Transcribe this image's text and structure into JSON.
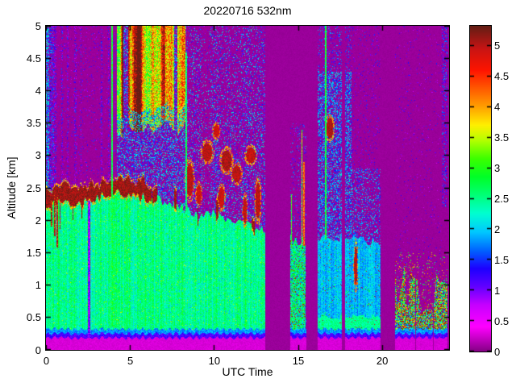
{
  "chart_data": {
    "type": "heatmap",
    "title": "20220716 532nm",
    "xlabel": "UTC Time",
    "ylabel": "Altitude [km]",
    "x_range": [
      0,
      24
    ],
    "y_range": [
      0,
      5
    ],
    "x_ticks": [
      0,
      5,
      10,
      15,
      20
    ],
    "x_tick_labels": [
      "0",
      "5",
      "10",
      "15",
      "20"
    ],
    "y_ticks": [
      0,
      0.5,
      1,
      1.5,
      2,
      2.5,
      3,
      3.5,
      4,
      4.5,
      5
    ],
    "y_tick_labels": [
      "0",
      "0.5",
      "1",
      "1.5",
      "2",
      "2.5",
      "3",
      "3.5",
      "4",
      "4.5",
      "5"
    ],
    "grid": false,
    "legend": "colorbar-right",
    "colorbar": {
      "vmin": 0,
      "vmax": 5.32,
      "ticks": [
        0,
        0.5,
        1,
        1.5,
        2,
        2.5,
        3,
        3.5,
        4,
        4.5,
        5
      ],
      "tick_labels": [
        "0",
        "0.5",
        "1",
        "1.5",
        "2",
        "2.5",
        "3",
        "3.5",
        "4",
        "4.5",
        "5"
      ]
    },
    "colormap": [
      [
        0.0,
        "#870087"
      ],
      [
        0.4,
        "#ff00ff"
      ],
      [
        0.75,
        "#c800ff"
      ],
      [
        1.05,
        "#6400ff"
      ],
      [
        1.35,
        "#1e00ff"
      ],
      [
        1.65,
        "#0064ff"
      ],
      [
        1.95,
        "#00c8ff"
      ],
      [
        2.25,
        "#00ffd2"
      ],
      [
        2.55,
        "#00ff78"
      ],
      [
        2.85,
        "#00ff28"
      ],
      [
        3.15,
        "#3cff00"
      ],
      [
        3.45,
        "#b4ff00"
      ],
      [
        3.7,
        "#fff000"
      ],
      [
        4.0,
        "#ffa000"
      ],
      [
        4.3,
        "#ff5a00"
      ],
      [
        4.6,
        "#ff1400"
      ],
      [
        4.95,
        "#c81414"
      ],
      [
        5.32,
        "#641e14"
      ]
    ],
    "background_color": "#9a009a",
    "bottom_bands": [
      {
        "z_top": 0.18,
        "value": 0.22,
        "note": "magenta sub-overlap strip"
      },
      {
        "z_top": 0.245,
        "value": 0.95,
        "note": "blue band"
      },
      {
        "z_top": 0.315,
        "value": 1.55,
        "note": "cyan band"
      }
    ],
    "gaps": [
      [
        13.05,
        14.55
      ],
      [
        15.52,
        16.18
      ],
      [
        17.62,
        17.81
      ],
      [
        19.9,
        20.78
      ],
      [
        21.97,
        22.04
      ],
      [
        23.03,
        23.09
      ],
      [
        23.9,
        24
      ]
    ],
    "rain_stripe": {
      "t0": 2.5,
      "t1": 2.63,
      "z_top": 2.32
    },
    "boundary_layer": {
      "points": [
        [
          0,
          2.28
        ],
        [
          1,
          2.34
        ],
        [
          2,
          2.38
        ],
        [
          3,
          2.41
        ],
        [
          4,
          2.46
        ],
        [
          5,
          2.5
        ],
        [
          5.8,
          2.46
        ],
        [
          6.5,
          2.36
        ],
        [
          7,
          2.3
        ],
        [
          8,
          2.22
        ],
        [
          9,
          2.06
        ],
        [
          10,
          2.12
        ],
        [
          11,
          2.0
        ],
        [
          12,
          1.93
        ],
        [
          13,
          1.86
        ],
        [
          14.55,
          1.72
        ],
        [
          15.45,
          1.66
        ],
        [
          16.2,
          1.7
        ],
        [
          17.6,
          1.73
        ],
        [
          18.6,
          1.7
        ],
        [
          19.9,
          1.62
        ],
        [
          20.8,
          1.0
        ],
        [
          21.4,
          1.1
        ],
        [
          22,
          0.75
        ],
        [
          22.6,
          0.8
        ],
        [
          23.2,
          0.7
        ],
        [
          23.9,
          0.65
        ],
        [
          24,
          0.65
        ]
      ]
    },
    "phases": [
      {
        "t0": 0,
        "t1": 13.05,
        "style": "green"
      },
      {
        "t0": 14.55,
        "t1": 15.45,
        "style": "mixed"
      },
      {
        "t0": 16.2,
        "t1": 19.9,
        "style": "cyan"
      },
      {
        "t0": 20.78,
        "t1": 23.9,
        "style": "low"
      }
    ],
    "cap": {
      "t_solid": 6.3,
      "t_end": 13.05,
      "value": 5.1,
      "fingers": [
        {
          "t": 0.32,
          "w": 0.1,
          "bot": 1.9
        },
        {
          "t": 0.52,
          "w": 0.08,
          "bot": 1.75
        },
        {
          "t": 0.68,
          "w": 0.1,
          "bot": 1.58
        },
        {
          "t": 0.85,
          "w": 0.07,
          "bot": 1.85
        },
        {
          "t": 1.6,
          "w": 0.05,
          "bot": 2.0
        },
        {
          "t": 2.15,
          "w": 0.05,
          "bot": 2.02
        }
      ]
    },
    "cloud": {
      "t0": 4.2,
      "t1": 8.3,
      "base_mean": 3.42,
      "base_amp": 0.3,
      "i_min": 2.6,
      "i_max": 5.3,
      "boosts": [
        [
          4.5,
          5.7,
          0.9
        ],
        [
          6.3,
          7.1,
          0.8
        ]
      ]
    },
    "low_field": {
      "t0": 20.78,
      "t1": 23.9,
      "top_min": 0.45,
      "top_max": 1.2
    },
    "speckle_fields": [
      {
        "t0": 0,
        "t1": 0.2,
        "z0": 0.3,
        "z1": 5,
        "p": 0.55,
        "vmin": 1.3,
        "vmax": 2.6
      },
      {
        "t0": 0.05,
        "t1": 0.5,
        "z0": 2.3,
        "z1": 5,
        "p": 0.42,
        "vmin": 0.8,
        "vmax": 1.9
      },
      {
        "t0": 0.5,
        "t1": 0.62,
        "z0": 2.3,
        "z1": 5,
        "p": 0.33,
        "vmin": 0.7,
        "vmax": 1.7
      },
      {
        "t0": 0.9,
        "t1": 1.02,
        "z0": 2.3,
        "z1": 5,
        "p": 0.33,
        "vmin": 0.7,
        "vmax": 1.7
      },
      {
        "t0": 1.25,
        "t1": 1.36,
        "z0": 2.3,
        "z1": 5,
        "p": 0.3,
        "vmin": 0.7,
        "vmax": 1.7
      },
      {
        "t0": 1.7,
        "t1": 1.83,
        "z0": 2.3,
        "z1": 5,
        "p": 0.3,
        "vmin": 0.7,
        "vmax": 1.7
      },
      {
        "t0": 2.05,
        "t1": 2.13,
        "z0": 2.3,
        "z1": 5,
        "p": 0.26,
        "vmin": 0.7,
        "vmax": 1.7
      },
      {
        "t0": 3.28,
        "t1": 3.37,
        "z0": 2.3,
        "z1": 5,
        "p": 0.3,
        "vmin": 0.7,
        "vmax": 1.7
      },
      {
        "t0": 3.7,
        "t1": 3.8,
        "z0": 2.3,
        "z1": 5,
        "p": 0.32,
        "vmin": 0.7,
        "vmax": 1.7
      },
      {
        "t0": 0,
        "t1": 4.2,
        "z0": 2.3,
        "z1": 5,
        "p": 0.05,
        "vmin": 0.7,
        "vmax": 1.6
      },
      {
        "t0": 4.2,
        "t1": 8.3,
        "z0": 0.3,
        "z1": 5,
        "p": 0.42,
        "vmin": 1.0,
        "vmax": 2.4
      },
      {
        "t0": 8.3,
        "t1": 13.05,
        "z0": 0.3,
        "z1": 5,
        "p": 0.5,
        "vmin": 0.8,
        "vmax": 2.4,
        "fade": 0.55,
        "patchy": true
      },
      {
        "t0": 14.55,
        "t1": 16.18,
        "z0": 0.3,
        "z1": 3.5,
        "p": 0.12,
        "vmin": 0.8,
        "vmax": 2.0
      },
      {
        "t0": 16.18,
        "t1": 18.2,
        "z0": 0.3,
        "z1": 4.3,
        "p": 0.5,
        "vmin": 1.2,
        "vmax": 2.3
      },
      {
        "t0": 16.18,
        "t1": 18.2,
        "z0": 4.3,
        "z1": 5,
        "p": 0.15,
        "vmin": 1.0,
        "vmax": 2.0
      },
      {
        "t0": 18.2,
        "t1": 19.9,
        "z0": 0.3,
        "z1": 2.8,
        "p": 0.28,
        "vmin": 1.1,
        "vmax": 2.2
      },
      {
        "t0": 18.2,
        "t1": 19.9,
        "z0": 2.8,
        "z1": 5,
        "p": 0.06,
        "vmin": 0.8,
        "vmax": 1.6
      },
      {
        "t0": 20.78,
        "t1": 23.9,
        "z0": 0,
        "z1": 1.5,
        "p": 0.09,
        "vmin": 2.2,
        "vmax": 5.1
      },
      {
        "t0": 19.9,
        "t1": 23.55,
        "z0": 0.3,
        "z1": 5,
        "p": 0.03,
        "vmin": 0.7,
        "vmax": 1.5
      },
      {
        "t0": 23.55,
        "t1": 23.9,
        "z0": 2.2,
        "z1": 5,
        "p": 0.3,
        "vmin": 0.9,
        "vmax": 1.9
      }
    ],
    "blobs": [
      {
        "t": 8.55,
        "z": 2.62,
        "w": 0.22,
        "h": 0.25,
        "v": 5.0
      },
      {
        "t": 9.1,
        "z": 2.4,
        "w": 0.15,
        "h": 0.15,
        "v": 4.9
      },
      {
        "t": 9.6,
        "z": 3.05,
        "w": 0.3,
        "h": 0.14,
        "v": 5.0
      },
      {
        "t": 10.15,
        "z": 3.38,
        "w": 0.18,
        "h": 0.1,
        "v": 4.9
      },
      {
        "t": 10.45,
        "z": 2.35,
        "w": 0.18,
        "h": 0.16,
        "v": 4.9
      },
      {
        "t": 10.75,
        "z": 2.92,
        "w": 0.3,
        "h": 0.16,
        "v": 5.05
      },
      {
        "t": 11.35,
        "z": 2.72,
        "w": 0.25,
        "h": 0.13,
        "v": 5.0
      },
      {
        "t": 11.85,
        "z": 2.15,
        "w": 0.12,
        "h": 0.2,
        "v": 4.95
      },
      {
        "t": 12.2,
        "z": 3.0,
        "w": 0.28,
        "h": 0.12,
        "v": 4.95
      },
      {
        "t": 12.62,
        "z": 2.3,
        "w": 0.15,
        "h": 0.28,
        "v": 5.0
      },
      {
        "t": 16.9,
        "z": 3.42,
        "w": 0.2,
        "h": 0.16,
        "v": 5.05
      },
      {
        "t": 18.45,
        "z": 1.3,
        "w": 0.1,
        "h": 0.3,
        "v": 5.0
      }
    ],
    "streaks": [
      {
        "t": 3.95,
        "z0": 0.35,
        "z1": 5,
        "w": 0.1,
        "v": 2.8
      },
      {
        "t": 8.35,
        "z0": 1.95,
        "z1": 4.6,
        "w": 0.08,
        "v": 2.6
      },
      {
        "t": 14.62,
        "z0": 1.6,
        "z1": 2.4,
        "w": 0.05,
        "v": 3.0
      },
      {
        "t": 15.25,
        "z0": 1.6,
        "z1": 3.4,
        "w": 0.06,
        "v": 3.4
      },
      {
        "t": 15.36,
        "z0": 1.6,
        "z1": 2.9,
        "w": 0.05,
        "v": 4.2
      },
      {
        "t": 16.65,
        "z0": 1.7,
        "z1": 5,
        "w": 0.1,
        "v": 2.8
      }
    ]
  }
}
